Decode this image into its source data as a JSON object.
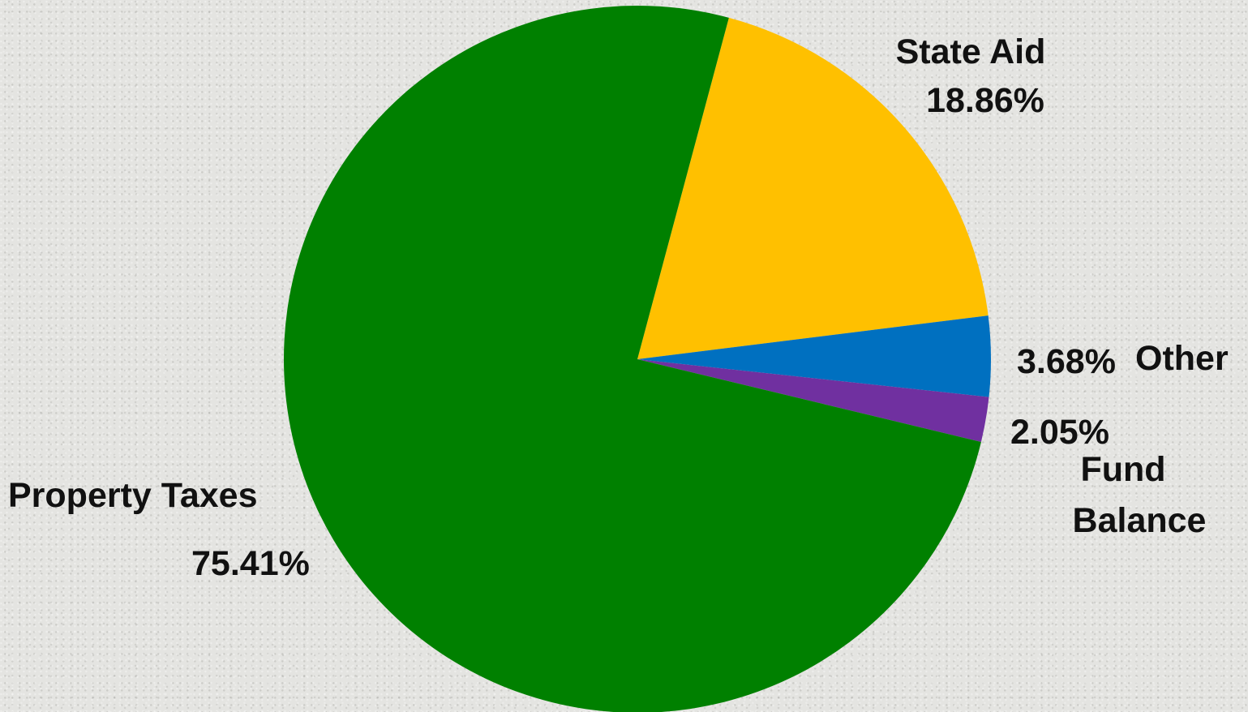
{
  "chart_data": {
    "type": "pie",
    "slices": [
      {
        "label": "State Aid",
        "label_lines": [
          "State Aid"
        ],
        "value": 18.86,
        "value_label": "18.86%",
        "color": "#FFC000"
      },
      {
        "label": "Other",
        "label_lines": [
          "Other"
        ],
        "value": 3.68,
        "value_label": "3.68%",
        "color": "#0070C0"
      },
      {
        "label": "Fund Balance",
        "label_lines": [
          "Fund",
          "Balance"
        ],
        "value": 2.05,
        "value_label": "2.05%",
        "color": "#7030A0"
      },
      {
        "label": "Property Taxes",
        "label_lines": [
          "Property Taxes"
        ],
        "value": 75.41,
        "value_label": "75.41%",
        "color": "#008000"
      }
    ],
    "start_angle_deg": -75,
    "direction": "clockwise",
    "legend": "none"
  }
}
